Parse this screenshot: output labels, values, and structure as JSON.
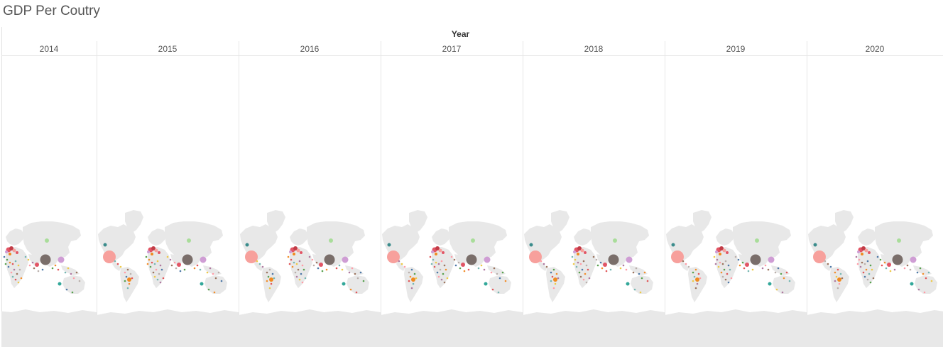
{
  "title": "GDP Per Coutry",
  "column_header_label": "Year",
  "years": [
    "2014",
    "2015",
    "2016",
    "2017",
    "2018",
    "2019",
    "2020"
  ],
  "colors": {
    "land": "#e8e8e8",
    "grid": "#e6e6e6",
    "title_text": "#555555"
  },
  "map_marks": {
    "usa": "#f7a09c",
    "china": "#7a6e6a",
    "japan": "#cf9dd4",
    "russia": "#a9dd9a",
    "brazil": "#f08a1f",
    "australia": "#33a89a",
    "india": "#e25565",
    "canada": "#3b8c8c"
  }
}
